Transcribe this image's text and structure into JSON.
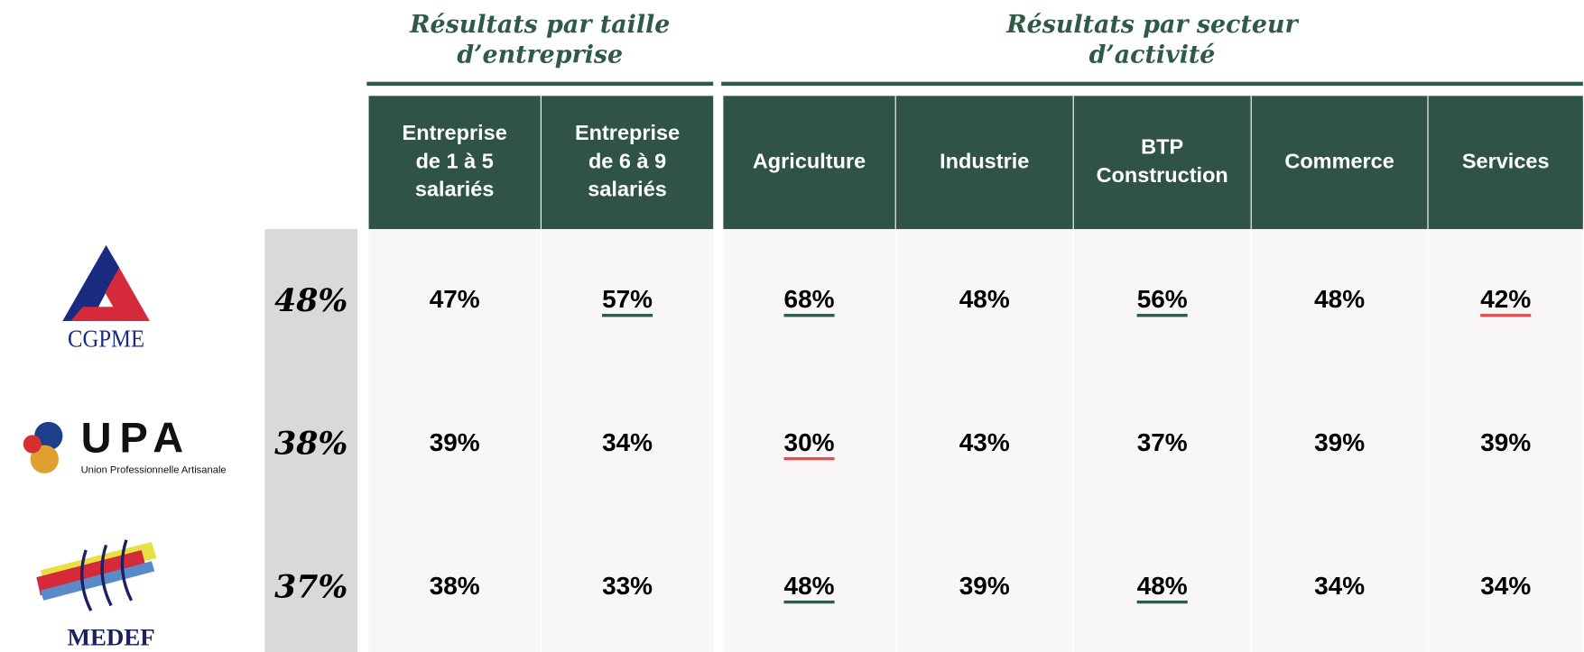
{
  "groups": [
    {
      "title": [
        "Résultats par taille",
        "d’entreprise"
      ],
      "span": 2
    },
    {
      "title": [
        "Résultats par secteur",
        "d’activité"
      ],
      "span": 5
    }
  ],
  "columns": [
    [
      "Entreprise",
      "de 1 à 5",
      "salariés"
    ],
    [
      "Entreprise",
      "de 6 à 9",
      "salariés"
    ],
    [
      "Agriculture"
    ],
    [
      "Industrie"
    ],
    [
      "BTP",
      "Construction"
    ],
    [
      "Commerce"
    ],
    [
      "Services"
    ]
  ],
  "highlight_colors": {
    "above": "#2f5a45",
    "below": "#e05050"
  },
  "rows": [
    {
      "logo": {
        "name": "CGPME"
      },
      "total": "48%",
      "cells": [
        {
          "text": "47%"
        },
        {
          "text": "57%",
          "mark": "above"
        },
        {
          "text": "68%",
          "mark": "above"
        },
        {
          "text": "48%"
        },
        {
          "text": "56%",
          "mark": "above"
        },
        {
          "text": "48%"
        },
        {
          "text": "42%",
          "mark": "below"
        }
      ]
    },
    {
      "logo": {
        "name": "UPA",
        "subtitle": "Union Professionnelle Artisanale"
      },
      "total": "38%",
      "cells": [
        {
          "text": "39%"
        },
        {
          "text": "34%"
        },
        {
          "text": "30%",
          "mark": "below"
        },
        {
          "text": "43%"
        },
        {
          "text": "37%"
        },
        {
          "text": "39%"
        },
        {
          "text": "39%"
        }
      ]
    },
    {
      "logo": {
        "name": "MEDEF"
      },
      "total": "37%",
      "cells": [
        {
          "text": "38%"
        },
        {
          "text": "33%"
        },
        {
          "text": "48%",
          "mark": "above"
        },
        {
          "text": "39%"
        },
        {
          "text": "48%",
          "mark": "above"
        },
        {
          "text": "34%"
        },
        {
          "text": "34%"
        }
      ]
    }
  ]
}
